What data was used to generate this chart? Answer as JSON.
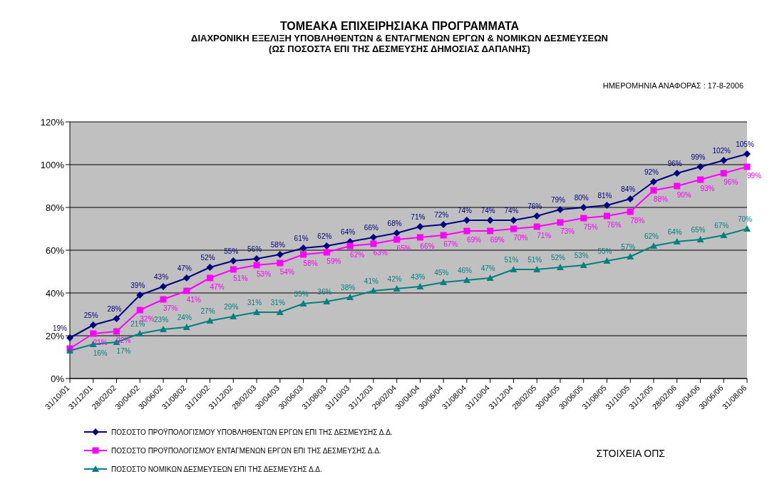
{
  "chart_data": {
    "type": "line",
    "title": "ΤΟΜΕΑΚΑ ΕΠΙΧΕΙΡΗΣΙΑΚΑ ΠΡΟΓΡΑΜΜΑΤΑ",
    "subtitle": "ΔΙΑΧΡΟΝΙΚΗ ΕΞΕΛΙΞΗ ΥΠΟΒΛΗΘΕΝΤΩΝ & ΕΝΤΑΓΜΕΝΩΝ ΕΡΓΩΝ & ΝΟΜΙΚΩΝ ΔΕΣΜΕΥΣΕΩΝ\n(ΩΣ ΠΟΣΟΣΤΑ ΕΠΙ ΤΗΣ ΔΕΣΜΕΥΣΗΣ ΔΗΜΟΣΙΑΣ ΔΑΠΑΝΗΣ)",
    "annotations": [
      "ΗΜΕΡΟΜΗΝΙΑ ΑΝΑΦΟΡΑΣ : 17-8-2006",
      "ΣΤΟΙΧΕΙΑ ΟΠΣ"
    ],
    "categories": [
      "31/10/01",
      "31/12/01",
      "28/02/02",
      "30/04/02",
      "30/06/02",
      "31/08/02",
      "31/10/02",
      "31/12/02",
      "28/02/03",
      "30/04/03",
      "30/06/03",
      "31/08/03",
      "31/10/03",
      "31/12/03",
      "29/02/04",
      "30/04/04",
      "30/06/04",
      "31/08/04",
      "31/10/04",
      "31/12/04",
      "28/02/05",
      "30/04/05",
      "30/06/05",
      "31/08/05",
      "31/10/05",
      "31/12/05",
      "28/02/06",
      "30/04/06",
      "30/06/06",
      "31/08/06"
    ],
    "series": [
      {
        "name": "ΠΟΣΟΣΤΟ ΠΡΟΫΠΟΛΟΓΙΣΜΟΥ ΥΠΟΒΛΗΘΕΝΤΩΝ ΕΡΓΩΝ ΕΠΙ ΤΗΣ ΔΕΣΜΕΥΣΗΣ Δ.Δ.",
        "color": "#000080",
        "marker": "diamond",
        "values": [
          19,
          25,
          28,
          39,
          43,
          47,
          52,
          55,
          56,
          58,
          61,
          62,
          64,
          66,
          68,
          71,
          72,
          74,
          74,
          74,
          76,
          79,
          80,
          81,
          84,
          92,
          96,
          99,
          102,
          105
        ],
        "value_labels": [
          "19%",
          "25%",
          "28%",
          "39%",
          "43%",
          "47%",
          "52%",
          "55%",
          "56%",
          "58%",
          "61%",
          "62%",
          "64%",
          "66%",
          "68%",
          "71%",
          "72%",
          "74%",
          "74%",
          "74%",
          "76%",
          "79%",
          "80%",
          "81%",
          "84%",
          "92%",
          "96%",
          "99%",
          "102%",
          "105%"
        ]
      },
      {
        "name": "ΠΟΣΟΣΤΟ ΠΡΟΫΠΟΛΟΓΙΣΜΟΥ ΕΝΤΑΓΜΕΝΩΝ ΕΡΓΩΝ ΕΠΙ ΤΗΣ ΔΕΣΜΕΥΣΗΣ Δ.Δ.",
        "color": "#ff00ff",
        "marker": "square",
        "values": [
          14,
          21,
          22,
          32,
          37,
          41,
          47,
          51,
          53,
          54,
          58,
          59,
          62,
          63,
          65,
          66,
          67,
          69,
          69,
          70,
          71,
          73,
          75,
          76,
          78,
          88,
          90,
          93,
          96,
          99
        ],
        "value_labels": [
          null,
          "21%",
          "22%",
          "32%",
          "37%",
          "41%",
          "47%",
          "51%",
          "53%",
          "54%",
          "58%",
          "59%",
          "62%",
          "63%",
          "65%",
          "66%",
          "67%",
          "69%",
          "69%",
          "70%",
          "71%",
          "73%",
          "75%",
          "76%",
          "78%",
          "88%",
          "90%",
          "93%",
          "96%",
          "99%"
        ]
      },
      {
        "name": "ΠΟΣΟΣΤΟ ΝΟΜΙΚΩΝ ΔΕΣΜΕΥΣΕΩΝ ΕΠΙ ΤΗΣ ΔΕΣΜΕΥΣΗΣ Δ.Δ.",
        "color": "#008080",
        "marker": "triangle",
        "values": [
          13,
          16,
          17,
          21,
          23,
          24,
          27,
          29,
          31,
          31,
          35,
          36,
          38,
          41,
          42,
          43,
          45,
          46,
          47,
          51,
          51,
          52,
          53,
          55,
          57,
          62,
          64,
          65,
          67,
          70
        ],
        "value_labels": [
          null,
          "16%",
          "17%",
          "21%",
          "23%",
          "24%",
          "27%",
          "29%",
          "31%",
          "31%",
          "35%",
          "36%",
          "38%",
          "41%",
          "42%",
          "43%",
          "45%",
          "46%",
          "47%",
          "51%",
          "51%",
          "52%",
          "53%",
          "55%",
          "57%",
          "62%",
          "64%",
          "65%",
          "67%",
          "70%"
        ]
      }
    ],
    "ylim": [
      0,
      120
    ],
    "yticks": [
      {
        "value": 0,
        "label": "0%"
      },
      {
        "value": 20,
        "label": "20%"
      },
      {
        "value": 40,
        "label": "40%"
      },
      {
        "value": 60,
        "label": "60%"
      },
      {
        "value": 80,
        "label": "80%"
      },
      {
        "value": 100,
        "label": "100%"
      },
      {
        "value": 120,
        "label": "120%"
      }
    ],
    "grid": "y",
    "legend": "bottom left"
  }
}
